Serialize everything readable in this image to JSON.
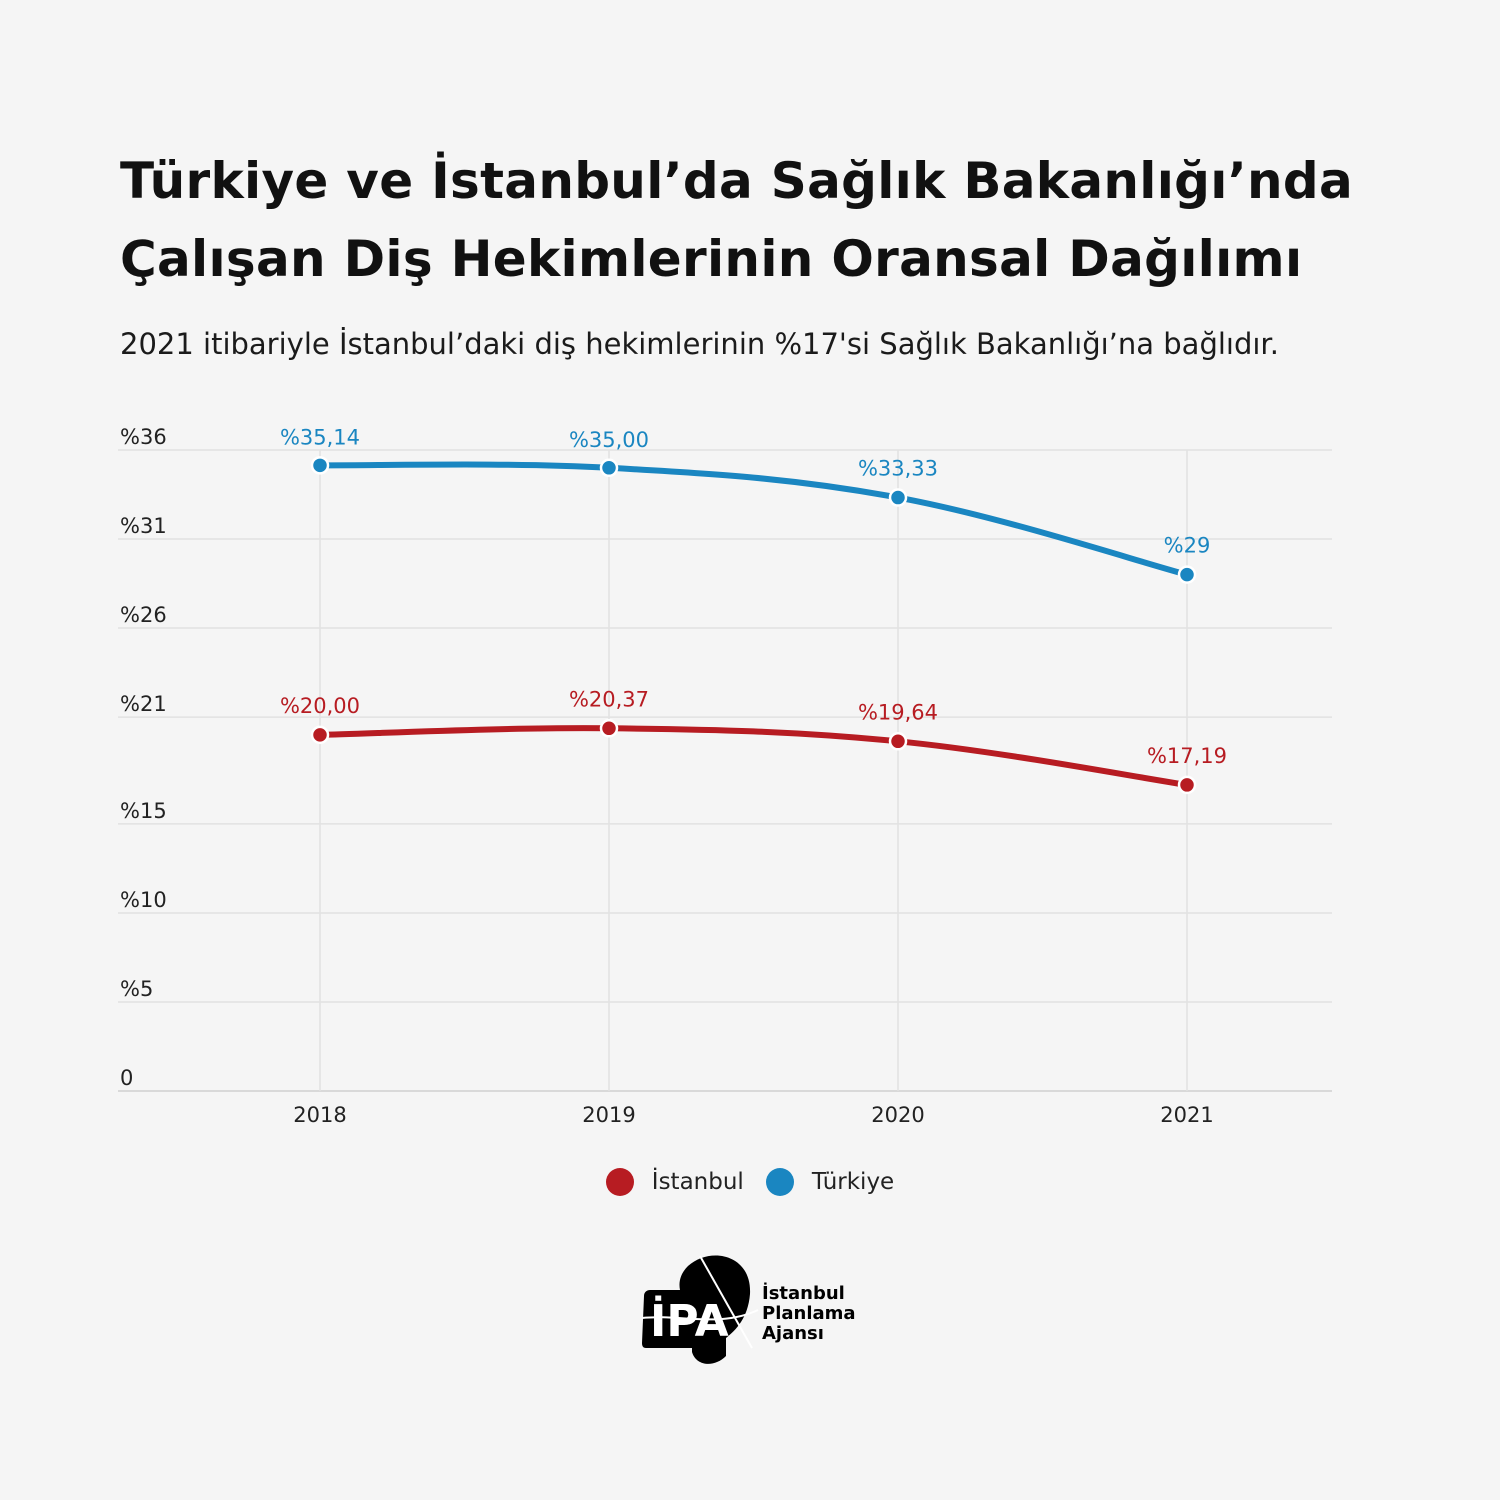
{
  "header": {
    "title_line1": "Türkiye ve İstanbul’da Sağlık Bakanlığı’nda",
    "title_line2": "Çalışan Diş Hekimlerinin Oransal Dağılımı",
    "subtitle": "2021 itibariyle İstanbul’daki diş hekimlerinin %17'si Sağlık Bakanlığı’na bağlıdır."
  },
  "chart_data": {
    "type": "line",
    "x": [
      "2018",
      "2019",
      "2020",
      "2021"
    ],
    "ylim": [
      0,
      36
    ],
    "yticks": [
      {
        "value": 0,
        "label": "0"
      },
      {
        "value": 5,
        "label": "%5"
      },
      {
        "value": 10,
        "label": "%10"
      },
      {
        "value": 15,
        "label": "%15"
      },
      {
        "value": 21,
        "label": "%21"
      },
      {
        "value": 26,
        "label": "%26"
      },
      {
        "value": 31,
        "label": "%31"
      },
      {
        "value": 36,
        "label": "%36"
      }
    ],
    "grid": true,
    "legend_position": "bottom-center",
    "series": [
      {
        "name": "İstanbul",
        "color": "#b71c22",
        "values": [
          20.0,
          20.37,
          19.64,
          17.19
        ],
        "labels": [
          "%20,00",
          "%20,37",
          "%19,64",
          "%17,19"
        ]
      },
      {
        "name": "Türkiye",
        "color": "#1a86c1",
        "values": [
          35.14,
          35.0,
          33.33,
          29
        ],
        "labels": [
          "%35,14",
          "%35,00",
          "%33,33",
          "%29"
        ]
      }
    ]
  },
  "legend": {
    "items": [
      {
        "label": "İstanbul",
        "color": "#b71c22"
      },
      {
        "label": "Türkiye",
        "color": "#1a86c1"
      }
    ]
  },
  "logo": {
    "mark": "İPA",
    "line1": "İstanbul",
    "line2": "Planlama",
    "line3": "Ajansı"
  }
}
